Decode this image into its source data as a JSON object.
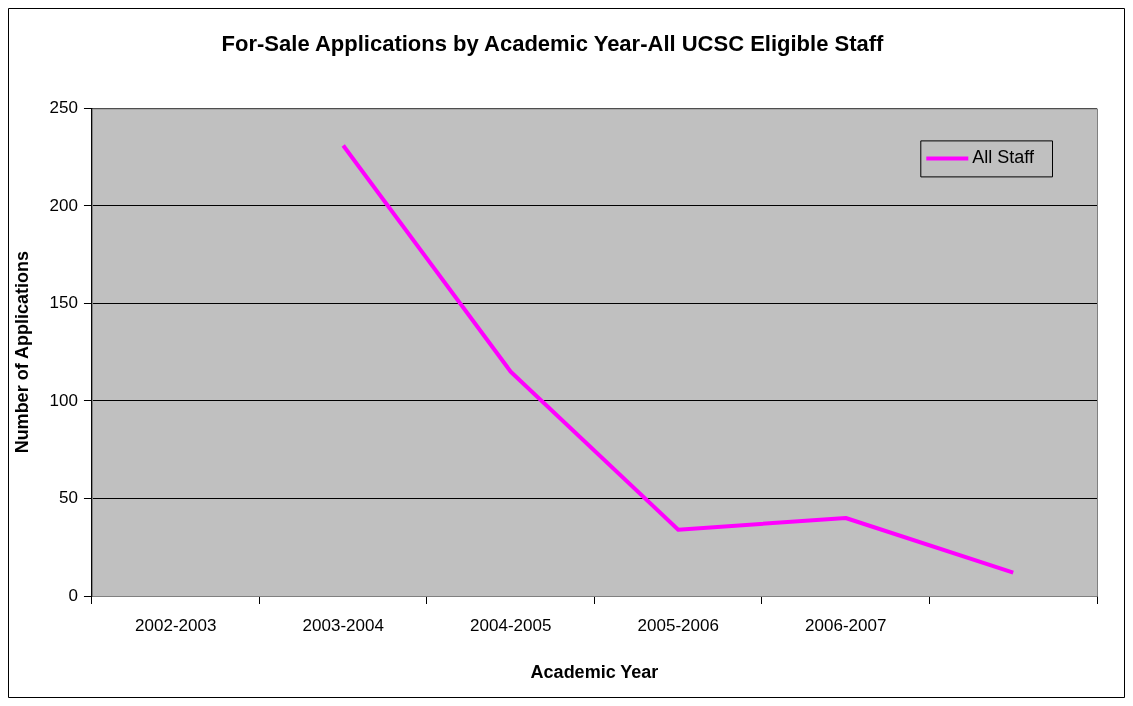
{
  "chart_data": {
    "type": "line",
    "title": "For-Sale Applications by Academic Year-All UCSC Eligible Staff",
    "xlabel": "Academic Year",
    "ylabel": "Number of Applications",
    "categories": [
      "2002-2003",
      "2003-2004",
      "2004-2005",
      "2005-2006",
      "2006-2007",
      null
    ],
    "series": [
      {
        "name": "All Staff",
        "color": "#ff00ff",
        "values": [
          null,
          231,
          115,
          34,
          40,
          12
        ]
      }
    ],
    "ylim": [
      0,
      250
    ],
    "yticks": [
      0,
      50,
      100,
      150,
      200,
      250
    ],
    "grid": "y",
    "legend": "top right",
    "marker": "none",
    "line_style": "solid"
  }
}
